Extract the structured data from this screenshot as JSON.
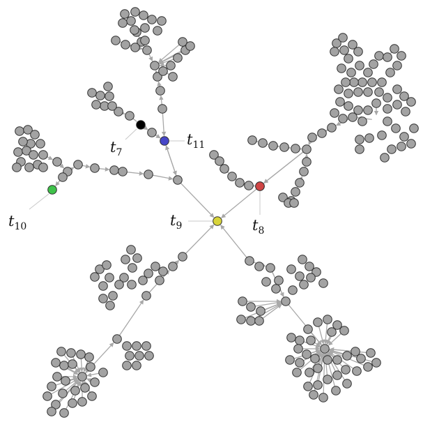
{
  "node_colors": {
    "default": "#a3a3a3",
    "outline": "#2e2e2e",
    "edge": "#a8a8a8"
  },
  "labels": [
    {
      "id": "t7",
      "letter": "t",
      "sub": "7",
      "color": "#000000"
    },
    {
      "id": "t8",
      "letter": "t",
      "sub": "8",
      "color": "#d04545"
    },
    {
      "id": "t9",
      "letter": "t",
      "sub": "9",
      "color": "#d8d43a"
    },
    {
      "id": "t10",
      "letter": "t",
      "sub": "10",
      "color": "#3fc24a"
    },
    {
      "id": "t11",
      "letter": "t",
      "sub": "11",
      "color": "#4646c8"
    }
  ]
}
